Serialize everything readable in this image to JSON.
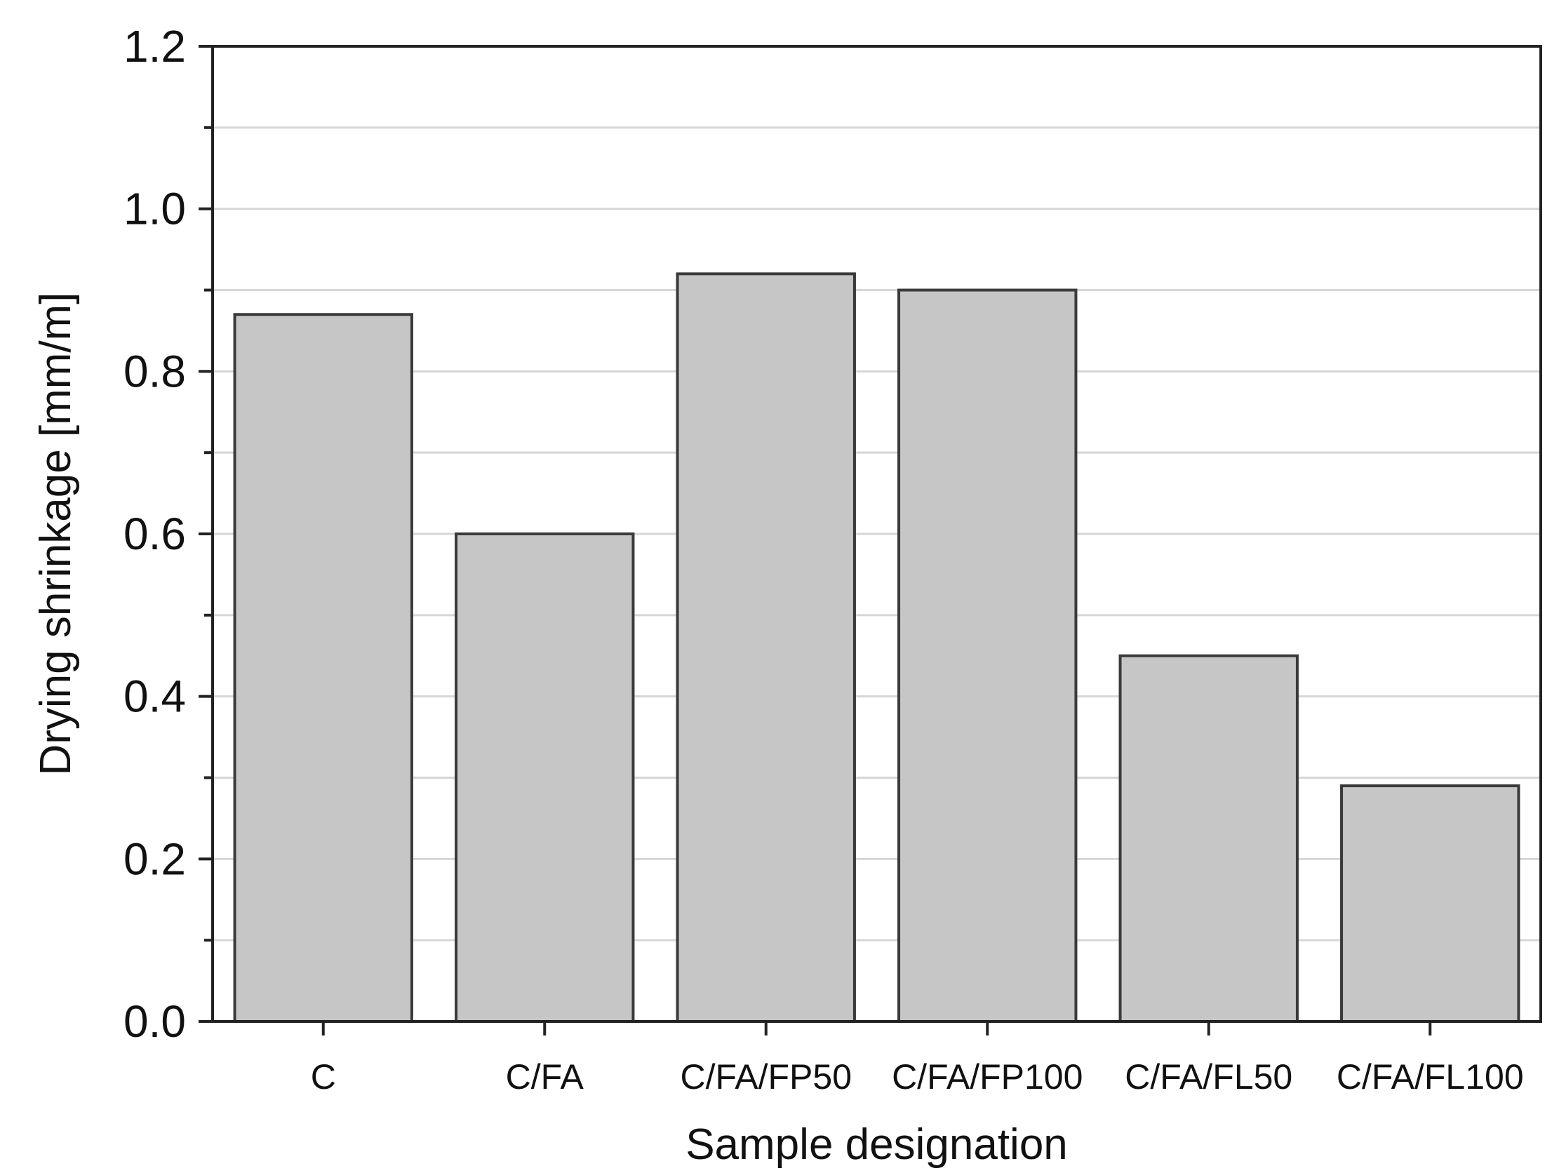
{
  "chart_data": {
    "type": "bar",
    "categories": [
      "C",
      "C/FA",
      "C/FA/FP50",
      "C/FA/FP100",
      "C/FA/FL50",
      "C/FA/FL100"
    ],
    "values": [
      0.87,
      0.6,
      0.92,
      0.9,
      0.45,
      0.29
    ],
    "xlabel": "Sample designation",
    "ylabel": "Drying shrinkage [mm/m]",
    "ylim": [
      0,
      1.2
    ],
    "yticks": [
      0.0,
      0.2,
      0.4,
      0.6,
      0.8,
      1.0,
      1.2
    ],
    "ytick_labels": [
      "0.0",
      "0.2",
      "0.4",
      "0.6",
      "0.8",
      "1.0",
      "1.2"
    ],
    "minor_ytick_step": 0.1,
    "grid": true,
    "legend": "none",
    "colors": {
      "bar_fill": "#c6c6c6",
      "bar_stroke": "#3a3a3a",
      "grid": "#d6d6d6",
      "axis": "#222222"
    }
  }
}
